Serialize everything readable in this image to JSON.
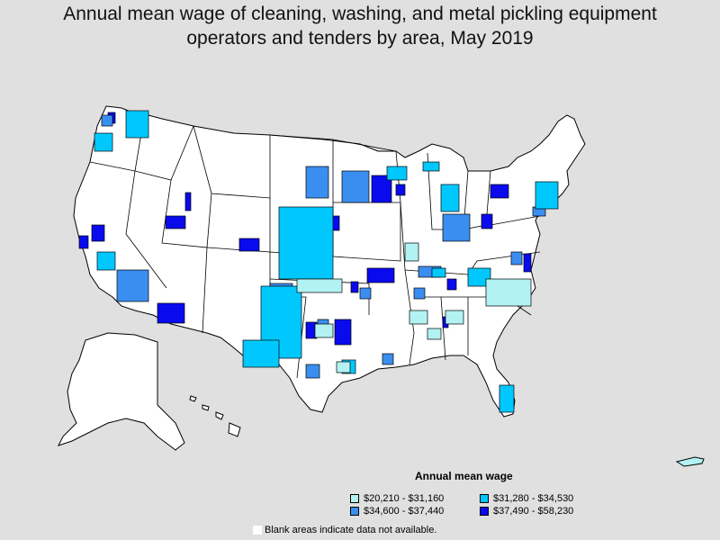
{
  "title_line1": "Annual mean wage of cleaning, washing, and metal pickling equipment",
  "title_line2": "operators and tenders by area, May 2019",
  "legend": {
    "title": "Annual mean wage",
    "items": [
      {
        "label": "$20,210 - $31,160",
        "color": "#b3f2f2"
      },
      {
        "label": "$31,280 - $34,530",
        "color": "#00c8ff"
      },
      {
        "label": "$34,600 - $37,440",
        "color": "#3a8ef0"
      },
      {
        "label": "$37,490 - $58,230",
        "color": "#0a0aee"
      }
    ]
  },
  "footnote": "Blank areas indicate data not available.",
  "colors": {
    "background": "#e0e0e0",
    "no_data": "#ffffff",
    "border": "#000000"
  }
}
